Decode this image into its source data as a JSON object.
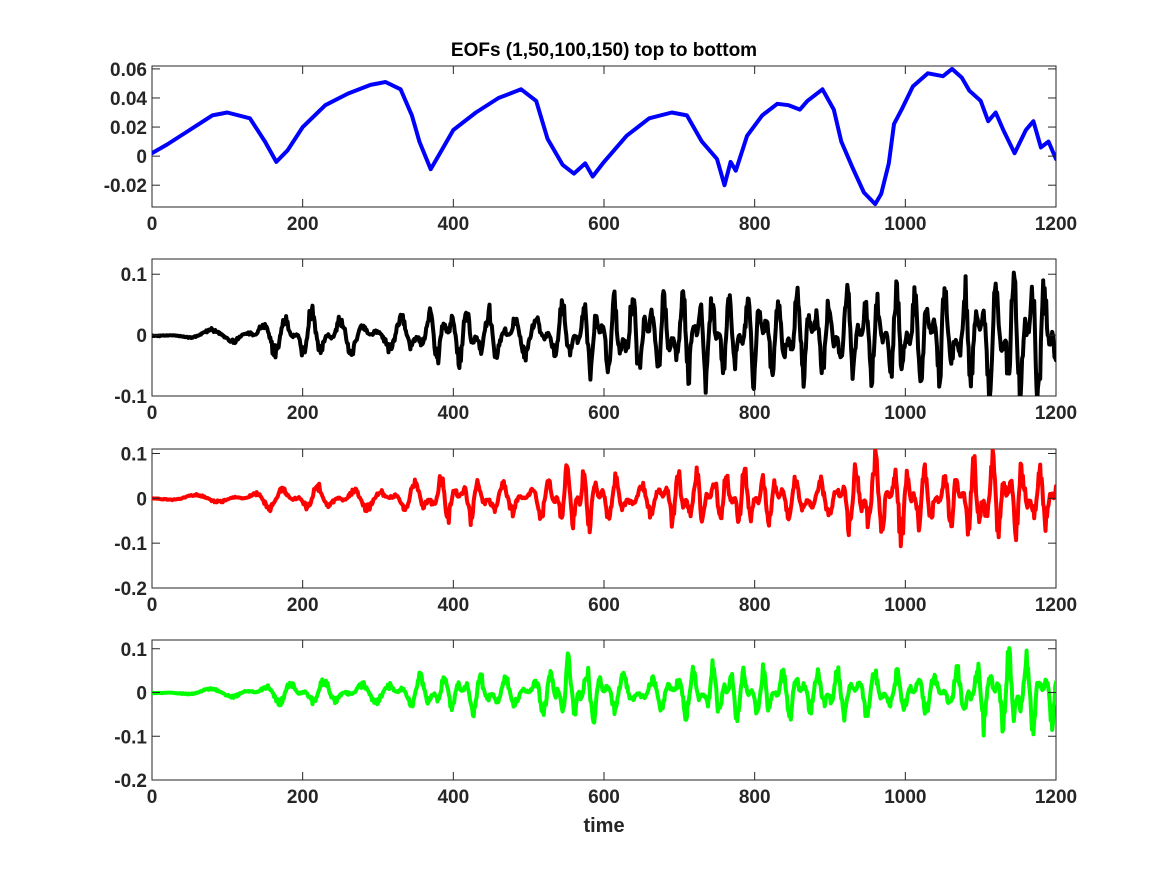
{
  "figure": {
    "background": "#ffffff"
  },
  "chart_data": [
    {
      "type": "line",
      "title": "EOFs (1,50,100,150) top to bottom",
      "xlabel": "",
      "ylabel": "",
      "xlim": [
        0,
        1200
      ],
      "ylim": [
        -0.035,
        0.062
      ],
      "xticks": [
        0,
        200,
        400,
        600,
        800,
        1000,
        1200
      ],
      "xtick_labels": [
        "0",
        "200",
        "400",
        "600",
        "800",
        "1000",
        "1200"
      ],
      "yticks": [
        -0.02,
        0,
        0.02,
        0.04,
        0.06
      ],
      "ytick_labels": [
        "-0.02",
        "0",
        "0.02",
        "0.04",
        "0.06"
      ],
      "grid": false,
      "series": [
        {
          "color": "#0000ff",
          "x": [
            0,
            20,
            50,
            80,
            100,
            130,
            150,
            165,
            180,
            200,
            230,
            260,
            290,
            310,
            330,
            345,
            355,
            370,
            380,
            400,
            430,
            460,
            490,
            510,
            525,
            545,
            560,
            575,
            585,
            600,
            630,
            660,
            690,
            710,
            730,
            750,
            760,
            768,
            775,
            790,
            810,
            830,
            845,
            860,
            870,
            890,
            905,
            915,
            930,
            945,
            960,
            968,
            978,
            985,
            995,
            1010,
            1030,
            1050,
            1062,
            1075,
            1085,
            1100,
            1110,
            1120,
            1130,
            1145,
            1160,
            1170,
            1180,
            1190,
            1200
          ],
          "values": [
            0.002,
            0.008,
            0.018,
            0.028,
            0.03,
            0.026,
            0.01,
            -0.004,
            0.004,
            0.02,
            0.035,
            0.043,
            0.049,
            0.051,
            0.046,
            0.028,
            0.01,
            -0.009,
            0.0,
            0.018,
            0.03,
            0.04,
            0.046,
            0.038,
            0.012,
            -0.006,
            -0.012,
            -0.005,
            -0.014,
            -0.004,
            0.014,
            0.026,
            0.03,
            0.028,
            0.01,
            -0.002,
            -0.02,
            -0.004,
            -0.01,
            0.014,
            0.028,
            0.036,
            0.035,
            0.032,
            0.038,
            0.046,
            0.032,
            0.01,
            -0.008,
            -0.025,
            -0.033,
            -0.026,
            -0.005,
            0.022,
            0.032,
            0.048,
            0.057,
            0.055,
            0.06,
            0.054,
            0.045,
            0.038,
            0.024,
            0.03,
            0.018,
            0.002,
            0.018,
            0.024,
            0.006,
            0.01,
            -0.002
          ]
        }
      ]
    },
    {
      "type": "line",
      "title": "",
      "xlabel": "",
      "ylabel": "",
      "xlim": [
        0,
        1200
      ],
      "ylim": [
        -0.1,
        0.125
      ],
      "xticks": [
        0,
        200,
        400,
        600,
        800,
        1000,
        1200
      ],
      "xtick_labels": [
        "0",
        "200",
        "400",
        "600",
        "800",
        "1000",
        "1200"
      ],
      "yticks": [
        -0.1,
        0,
        0.1
      ],
      "ytick_labels": [
        "-0.1",
        "0",
        "0.1"
      ],
      "grid": false,
      "series": [
        {
          "color": "#000000",
          "seed": 50,
          "envelope": [
            [
              0,
              0.004
            ],
            [
              100,
              0.01
            ],
            [
              200,
              0.04
            ],
            [
              300,
              0.02
            ],
            [
              400,
              0.05
            ],
            [
              500,
              0.03
            ],
            [
              600,
              0.06
            ],
            [
              700,
              0.07
            ],
            [
              800,
              0.07
            ],
            [
              900,
              0.06
            ],
            [
              1000,
              0.08
            ],
            [
              1100,
              0.08
            ],
            [
              1140,
              0.11
            ],
            [
              1200,
              0.09
            ]
          ]
        }
      ]
    },
    {
      "type": "line",
      "title": "",
      "xlabel": "",
      "ylabel": "",
      "xlim": [
        0,
        1200
      ],
      "ylim": [
        -0.2,
        0.11
      ],
      "xticks": [
        0,
        200,
        400,
        600,
        800,
        1000,
        1200
      ],
      "xtick_labels": [
        "0",
        "200",
        "400",
        "600",
        "800",
        "1000",
        "1200"
      ],
      "yticks": [
        -0.2,
        -0.1,
        0,
        0.1
      ],
      "ytick_labels": [
        "-0.2",
        "-0.1",
        "0",
        "0.1"
      ],
      "grid": false,
      "series": [
        {
          "color": "#ff0000",
          "seed": 100,
          "envelope": [
            [
              0,
              0.004
            ],
            [
              100,
              0.01
            ],
            [
              200,
              0.03
            ],
            [
              300,
              0.02
            ],
            [
              400,
              0.05
            ],
            [
              500,
              0.03
            ],
            [
              560,
              0.07
            ],
            [
              650,
              0.03
            ],
            [
              700,
              0.06
            ],
            [
              800,
              0.06
            ],
            [
              900,
              0.04
            ],
            [
              960,
              0.1
            ],
            [
              1050,
              0.05
            ],
            [
              1100,
              0.09
            ],
            [
              1200,
              0.06
            ]
          ]
        }
      ]
    },
    {
      "type": "line",
      "title": "",
      "xlabel": "time",
      "ylabel": "",
      "xlim": [
        0,
        1200
      ],
      "ylim": [
        -0.2,
        0.12
      ],
      "xticks": [
        0,
        200,
        400,
        600,
        800,
        1000,
        1200
      ],
      "xtick_labels": [
        "0",
        "200",
        "400",
        "600",
        "800",
        "1000",
        "1200"
      ],
      "yticks": [
        -0.2,
        -0.1,
        0,
        0.1
      ],
      "ytick_labels": [
        "-0.2",
        "-0.1",
        "0",
        "0.1"
      ],
      "grid": false,
      "series": [
        {
          "color": "#00ff00",
          "seed": 150,
          "envelope": [
            [
              0,
              0.004
            ],
            [
              100,
              0.01
            ],
            [
              200,
              0.03
            ],
            [
              300,
              0.02
            ],
            [
              400,
              0.05
            ],
            [
              500,
              0.03
            ],
            [
              550,
              0.07
            ],
            [
              650,
              0.03
            ],
            [
              750,
              0.06
            ],
            [
              850,
              0.05
            ],
            [
              950,
              0.05
            ],
            [
              1050,
              0.04
            ],
            [
              1150,
              0.1
            ],
            [
              1200,
              0.07
            ]
          ]
        }
      ]
    }
  ]
}
